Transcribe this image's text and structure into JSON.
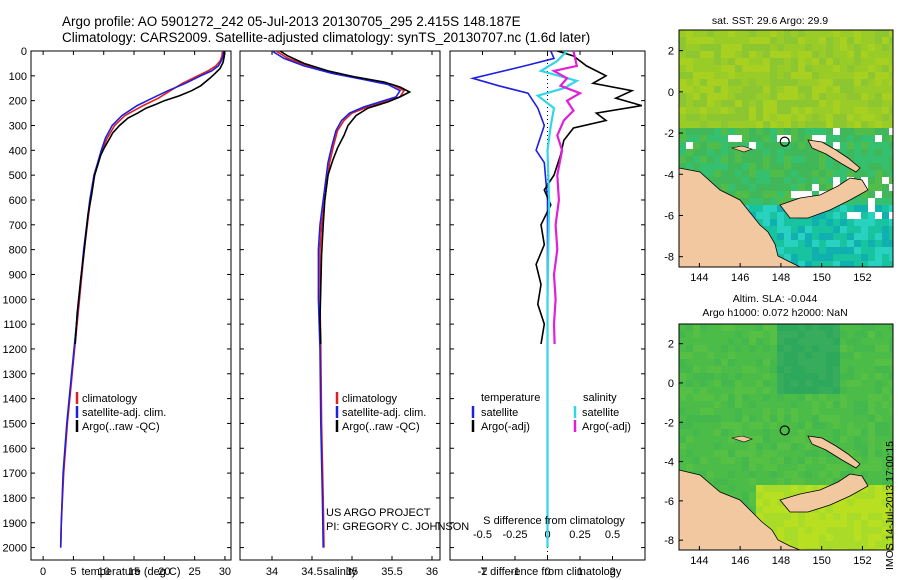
{
  "page": {
    "title_line1": "Argo profile: AO 5901272_242 05-Jul-2013 20130705_295 2.415S 148.187E",
    "title_line2": "Climatology: CARS2009. Satellite-adjusted climatology: synTS_20130707.nc (1.6d later)",
    "credit_line1": "US ARGO PROJECT",
    "credit_line2": "PI: GREGORY C. JOHNSON",
    "footer_stamp": "IMOS 14-Jul-2013 17:00:15"
  },
  "colors": {
    "climatology": "#e02020",
    "satellite": "#1f1fe0",
    "argo": "#000000",
    "sal_satellite": "#33d6e6",
    "sal_argo": "#e020d8",
    "land": "#f2c8a0"
  },
  "chart_data": [
    {
      "type": "line",
      "name": "temperature-profile",
      "xlabel": "temperature (deg C)",
      "ylabel": "",
      "xlim": [
        -2,
        31
      ],
      "ylim": [
        2050,
        0
      ],
      "xticks": [
        0,
        5,
        10,
        15,
        20,
        25,
        30
      ],
      "yticks": [
        0,
        100,
        200,
        300,
        400,
        500,
        600,
        700,
        800,
        900,
        1000,
        1100,
        1200,
        1300,
        1400,
        1500,
        1600,
        1700,
        1800,
        1900,
        2000
      ],
      "legend": {
        "position": "lower-center",
        "entries": [
          "climatology",
          "satellite-adj. clim.",
          "Argo(..raw -QC)"
        ]
      },
      "series": [
        {
          "name": "climatology",
          "points": [
            [
              29.6,
              0
            ],
            [
              29.5,
              20
            ],
            [
              29.2,
              40
            ],
            [
              28.5,
              60
            ],
            [
              27.2,
              80
            ],
            [
              25.5,
              100
            ],
            [
              23,
              130
            ],
            [
              21,
              160
            ],
            [
              19,
              190
            ],
            [
              16.5,
              220
            ],
            [
              13.5,
              260
            ],
            [
              11.8,
              300
            ],
            [
              10.6,
              350
            ],
            [
              9.7,
              400
            ],
            [
              9.1,
              450
            ],
            [
              8.5,
              500
            ],
            [
              7.8,
              600
            ],
            [
              6.8,
              800
            ],
            [
              6,
              1000
            ],
            [
              4.8,
              1300
            ],
            [
              4,
              1500
            ],
            [
              3.4,
              1700
            ],
            [
              3,
              1900
            ],
            [
              2.9,
              2000
            ]
          ]
        },
        {
          "name": "satellite-adj. clim.",
          "points": [
            [
              29.8,
              0
            ],
            [
              29.7,
              20
            ],
            [
              29.4,
              40
            ],
            [
              28.9,
              60
            ],
            [
              27.8,
              80
            ],
            [
              26,
              100
            ],
            [
              23.5,
              130
            ],
            [
              20.6,
              160
            ],
            [
              18,
              190
            ],
            [
              15.5,
              220
            ],
            [
              13,
              260
            ],
            [
              11.4,
              300
            ],
            [
              10.3,
              350
            ],
            [
              9.6,
              400
            ],
            [
              9,
              450
            ],
            [
              8.4,
              500
            ],
            [
              7.7,
              600
            ],
            [
              6.7,
              800
            ],
            [
              5.9,
              1000
            ],
            [
              4.7,
              1300
            ],
            [
              3.9,
              1500
            ],
            [
              3.3,
              1700
            ],
            [
              3,
              1900
            ],
            [
              2.9,
              2000
            ]
          ]
        },
        {
          "name": "Argo(..raw -QC)",
          "points": [
            [
              29.9,
              0
            ],
            [
              29.9,
              20
            ],
            [
              29.7,
              45
            ],
            [
              29.2,
              70
            ],
            [
              28.4,
              90
            ],
            [
              27.5,
              110
            ],
            [
              26,
              140
            ],
            [
              24.5,
              160
            ],
            [
              22.5,
              180
            ],
            [
              20,
              200
            ],
            [
              18.6,
              215
            ],
            [
              17,
              230
            ],
            [
              15.6,
              250
            ],
            [
              14,
              270
            ],
            [
              12.6,
              300
            ],
            [
              11.5,
              330
            ],
            [
              10.8,
              360
            ],
            [
              10.1,
              390
            ],
            [
              9.5,
              420
            ],
            [
              9,
              460
            ],
            [
              8.5,
              500
            ],
            [
              8,
              580
            ],
            [
              7.4,
              660
            ],
            [
              6.8,
              800
            ],
            [
              6.2,
              920
            ],
            [
              5.6,
              1060
            ],
            [
              5.3,
              1180
            ]
          ]
        }
      ]
    },
    {
      "type": "line",
      "name": "salinity-profile",
      "xlabel": "salinity",
      "xlim": [
        33.6,
        36.1
      ],
      "ylim": [
        2050,
        0
      ],
      "xticks": [
        34,
        34.5,
        35,
        35.5,
        36
      ],
      "legend": {
        "position": "lower-center",
        "entries": [
          "climatology",
          "satellite-adj. clim.",
          "Argo(..raw -QC)"
        ]
      },
      "series": [
        {
          "name": "climatology",
          "points": [
            [
              34.05,
              0
            ],
            [
              34.2,
              30
            ],
            [
              34.45,
              60
            ],
            [
              34.8,
              90
            ],
            [
              35.2,
              115
            ],
            [
              35.5,
              135
            ],
            [
              35.65,
              160
            ],
            [
              35.6,
              185
            ],
            [
              35.4,
              205
            ],
            [
              35.2,
              225
            ],
            [
              35,
              250
            ],
            [
              34.9,
              280
            ],
            [
              34.82,
              320
            ],
            [
              34.77,
              380
            ],
            [
              34.72,
              450
            ],
            [
              34.68,
              550
            ],
            [
              34.62,
              700
            ],
            [
              34.6,
              800
            ],
            [
              34.6,
              1000
            ],
            [
              34.61,
              1200
            ],
            [
              34.62,
              1500
            ],
            [
              34.64,
              1800
            ],
            [
              34.65,
              2000
            ]
          ]
        },
        {
          "name": "satellite-adj. clim.",
          "points": [
            [
              34.0,
              0
            ],
            [
              34.15,
              30
            ],
            [
              34.4,
              60
            ],
            [
              34.75,
              90
            ],
            [
              35.15,
              115
            ],
            [
              35.45,
              135
            ],
            [
              35.6,
              160
            ],
            [
              35.55,
              185
            ],
            [
              35.35,
              205
            ],
            [
              35.15,
              225
            ],
            [
              34.97,
              250
            ],
            [
              34.87,
              280
            ],
            [
              34.8,
              320
            ],
            [
              34.75,
              380
            ],
            [
              34.7,
              450
            ],
            [
              34.66,
              550
            ],
            [
              34.6,
              700
            ],
            [
              34.58,
              800
            ],
            [
              34.58,
              1000
            ],
            [
              34.6,
              1200
            ],
            [
              34.61,
              1500
            ],
            [
              34.63,
              1800
            ],
            [
              34.64,
              2000
            ]
          ]
        },
        {
          "name": "Argo(..raw -QC)",
          "points": [
            [
              34.1,
              0
            ],
            [
              34.2,
              20
            ],
            [
              34.4,
              50
            ],
            [
              34.7,
              80
            ],
            [
              35.05,
              105
            ],
            [
              35.4,
              125
            ],
            [
              35.6,
              145
            ],
            [
              35.72,
              165
            ],
            [
              35.6,
              185
            ],
            [
              35.45,
              205
            ],
            [
              35.2,
              230
            ],
            [
              35.05,
              260
            ],
            [
              34.95,
              300
            ],
            [
              34.9,
              340
            ],
            [
              34.82,
              390
            ],
            [
              34.76,
              440
            ],
            [
              34.7,
              500
            ],
            [
              34.66,
              600
            ],
            [
              34.64,
              700
            ],
            [
              34.62,
              820
            ],
            [
              34.61,
              950
            ],
            [
              34.6,
              1080
            ],
            [
              34.61,
              1180
            ]
          ]
        }
      ]
    },
    {
      "type": "line",
      "name": "difference-profile",
      "xlabel_top": "S difference from climatology",
      "xlabel": "T difference from climatology",
      "t_xlim": [
        -3,
        3
      ],
      "t_xticks": [
        -2,
        -1,
        0,
        1,
        2
      ],
      "s_xticks_labels": [
        "-0.5",
        "-0.25",
        "0",
        "0.25",
        "0.5"
      ],
      "legend": {
        "temperature_header": "temperature",
        "salinity_header": "salinity",
        "entries": [
          "satellite",
          "Argo(-adj)",
          "satellite",
          "Argo(-adj)"
        ]
      },
      "series": [
        {
          "name": "T satellite",
          "points": [
            [
              0.1,
              0
            ],
            [
              0.2,
              30
            ],
            [
              -0.7,
              60
            ],
            [
              -2.3,
              110
            ],
            [
              -1.5,
              140
            ],
            [
              -0.6,
              170
            ],
            [
              -0.3,
              230
            ],
            [
              -0.1,
              300
            ],
            [
              -0.35,
              400
            ],
            [
              -0.1,
              450
            ],
            [
              0,
              600
            ],
            [
              0,
              1000
            ],
            [
              0,
              1500
            ],
            [
              0,
              2000
            ]
          ]
        },
        {
          "name": "T Argo(-adj)",
          "points": [
            [
              0.3,
              0
            ],
            [
              0.8,
              20
            ],
            [
              1.2,
              60
            ],
            [
              1.8,
              100
            ],
            [
              1.4,
              130
            ],
            [
              2.6,
              160
            ],
            [
              2.1,
              190
            ],
            [
              2.9,
              220
            ],
            [
              1.5,
              250
            ],
            [
              1.8,
              280
            ],
            [
              0.8,
              310
            ],
            [
              0.5,
              360
            ],
            [
              0.4,
              420
            ],
            [
              0.2,
              500
            ],
            [
              -0.1,
              560
            ],
            [
              0.1,
              620
            ],
            [
              -0.2,
              700
            ],
            [
              -0.1,
              780
            ],
            [
              -0.35,
              860
            ],
            [
              -0.2,
              940
            ],
            [
              -0.3,
              1020
            ],
            [
              -0.1,
              1100
            ],
            [
              -0.2,
              1180
            ]
          ]
        },
        {
          "name": "S satellite",
          "points": [
            [
              0.6,
              0
            ],
            [
              0.3,
              40
            ],
            [
              -0.2,
              80
            ],
            [
              0.9,
              120
            ],
            [
              0.5,
              150
            ],
            [
              -0.3,
              180
            ],
            [
              0.2,
              230
            ],
            [
              0.1,
              300
            ],
            [
              0,
              400
            ],
            [
              0.05,
              600
            ],
            [
              0,
              1000
            ],
            [
              0,
              1500
            ],
            [
              0,
              2000
            ]
          ]
        },
        {
          "name": "S Argo(-adj)",
          "points": [
            [
              0.8,
              0
            ],
            [
              0.9,
              60
            ],
            [
              0.2,
              80
            ],
            [
              0.6,
              110
            ],
            [
              0.4,
              140
            ],
            [
              1.0,
              170
            ],
            [
              0.6,
              200
            ],
            [
              0.8,
              240
            ],
            [
              0.5,
              280
            ],
            [
              0.3,
              340
            ],
            [
              0.45,
              400
            ],
            [
              0.3,
              500
            ],
            [
              0.35,
              600
            ],
            [
              0.25,
              700
            ],
            [
              0.3,
              800
            ],
            [
              0.2,
              900
            ],
            [
              0.25,
              1000
            ],
            [
              0.2,
              1100
            ],
            [
              0.22,
              1180
            ]
          ]
        }
      ]
    },
    {
      "type": "heatmap",
      "name": "sst-map",
      "title": "sat. SST: 29.6  Argo: 29.9",
      "xticks": [
        144,
        146,
        148,
        150,
        152
      ],
      "yticks": [
        2,
        0,
        -2,
        -4,
        -6,
        -8
      ],
      "xlim": [
        143,
        153.5
      ],
      "ylim": [
        -8.5,
        3
      ],
      "argo_location": {
        "lon": 148.187,
        "lat": -2.415
      }
    },
    {
      "type": "heatmap",
      "name": "sla-map",
      "title_line1": "Altim. SLA: -0.044",
      "title_line2": "Argo h1000: 0.072  h2000: NaN",
      "xticks": [
        144,
        146,
        148,
        150,
        152
      ],
      "yticks": [
        2,
        0,
        -2,
        -4,
        -6,
        -8
      ],
      "xlim": [
        143,
        153.5
      ],
      "ylim": [
        -8.5,
        3
      ],
      "argo_location": {
        "lon": 148.187,
        "lat": -2.415
      }
    }
  ]
}
